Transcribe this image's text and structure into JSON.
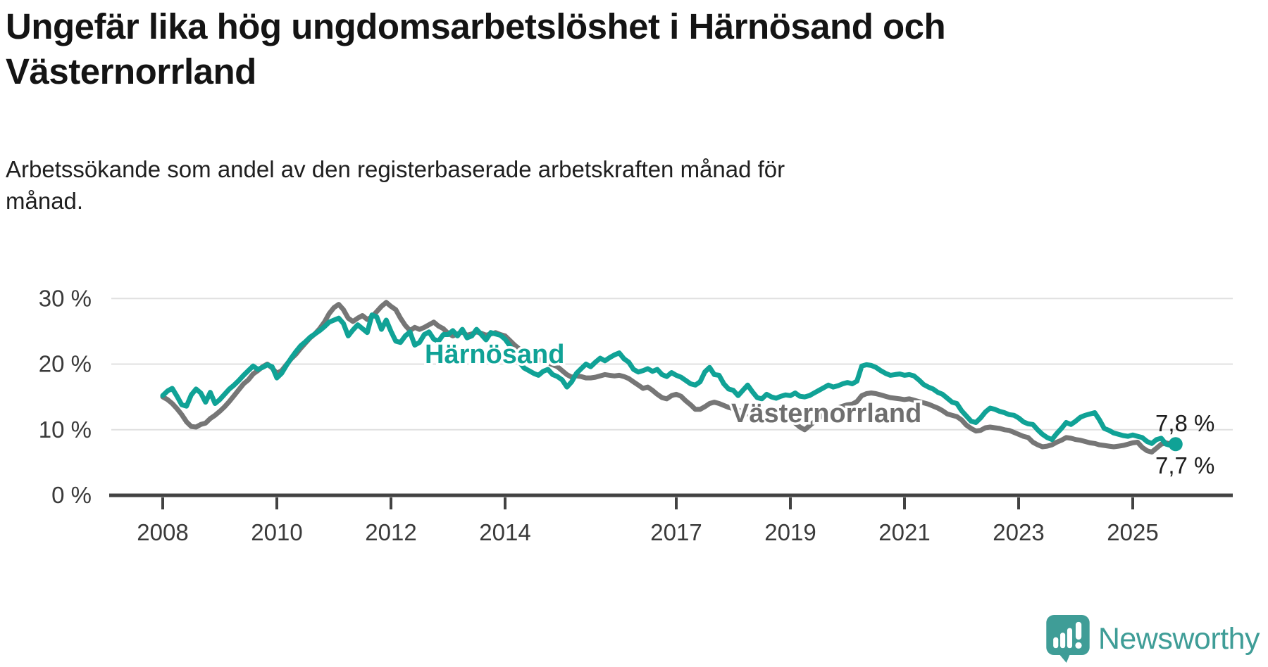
{
  "title": {
    "line1": "Ungefär lika hög ungdomsarbetslöshet i Härnösand och",
    "line2": "Västernorrland"
  },
  "subtitle": {
    "line1": "Arbetssökande som andel av den registerbaserade arbetskraften månad för",
    "line2": "månad."
  },
  "branding": {
    "logo_text": "Newsworthy",
    "logo_color": "#3f9d97",
    "logo_icon": "speech-bubble-bar-chart-exclamation"
  },
  "colors": {
    "harnosand_teal": "#10a296",
    "vasternorrland_grey": "#767676",
    "grid": "#e0e0e0",
    "axis": "#424242",
    "text": "#1f1f1f"
  },
  "chart_data": {
    "type": "line",
    "unit": "%",
    "frequency": "monthly",
    "x_start": "2008-01",
    "x_end": "2025-10",
    "ylim": [
      0,
      32
    ],
    "grid": "horizontal",
    "legend_position": "inline-labels",
    "y_ticks": [
      {
        "value": 30,
        "label": "30 %"
      },
      {
        "value": 20,
        "label": "20 %"
      },
      {
        "value": 10,
        "label": "10 %"
      },
      {
        "value": 0,
        "label": "0 %"
      }
    ],
    "x_ticks": [
      {
        "year": 2008,
        "label": "2008"
      },
      {
        "year": 2010,
        "label": "2010"
      },
      {
        "year": 2012,
        "label": "2012"
      },
      {
        "year": 2014,
        "label": "2014"
      },
      {
        "year": 2017,
        "label": "2017"
      },
      {
        "year": 2019,
        "label": "2019"
      },
      {
        "year": 2021,
        "label": "2021"
      },
      {
        "year": 2023,
        "label": "2023"
      },
      {
        "year": 2025,
        "label": "2025"
      }
    ],
    "series": [
      {
        "name": "Västernorrland",
        "color": "#767676",
        "label_color": "#6f6f6f",
        "end_label": "7,7 %",
        "end_value": 7.7,
        "end_marker": false,
        "values": [
          15.0,
          14.6,
          14.0,
          13.2,
          12.3,
          11.2,
          10.5,
          10.4,
          10.8,
          11.0,
          11.7,
          12.2,
          12.8,
          13.5,
          14.3,
          15.2,
          16.1,
          17.0,
          17.6,
          18.5,
          19.0,
          19.6,
          20.0,
          19.4,
          18.6,
          19.0,
          19.9,
          20.8,
          21.5,
          22.4,
          23.2,
          24.0,
          24.6,
          25.4,
          26.4,
          27.7,
          28.6,
          29.1,
          28.3,
          27.0,
          26.5,
          27.0,
          27.4,
          26.8,
          27.2,
          28.0,
          28.8,
          29.4,
          28.8,
          28.3,
          27.0,
          25.9,
          25.1,
          25.6,
          25.3,
          25.6,
          26.0,
          26.4,
          25.8,
          25.4,
          24.7,
          24.3,
          24.6,
          24.9,
          24.4,
          24.6,
          24.9,
          24.7,
          24.4,
          24.6,
          24.8,
          24.5,
          24.3,
          23.6,
          22.9,
          22.3,
          21.8,
          21.4,
          21.0,
          20.7,
          20.5,
          20.2,
          19.9,
          19.6,
          19.0,
          18.4,
          18.0,
          18.2,
          18.1,
          17.9,
          17.9,
          18.0,
          18.2,
          18.4,
          18.3,
          18.2,
          18.3,
          18.1,
          17.8,
          17.3,
          16.8,
          16.3,
          16.5,
          16.0,
          15.4,
          14.9,
          14.7,
          15.2,
          15.4,
          15.1,
          14.4,
          13.8,
          13.1,
          13.1,
          13.5,
          14.0,
          14.2,
          14.0,
          13.7,
          13.4,
          13.2,
          13.0,
          12.7,
          12.4,
          12.2,
          12.5,
          12.8,
          12.6,
          12.3,
          12.1,
          11.9,
          11.8,
          11.5,
          11.0,
          10.4,
          10.0,
          10.6,
          11.2,
          11.8,
          12.3,
          12.7,
          13.0,
          13.3,
          13.6,
          13.8,
          13.9,
          14.3,
          15.2,
          15.5,
          15.6,
          15.5,
          15.3,
          15.1,
          14.9,
          14.8,
          14.7,
          14.6,
          14.7,
          14.5,
          14.3,
          14.1,
          13.9,
          13.6,
          13.3,
          12.9,
          12.4,
          12.2,
          12.0,
          11.5,
          10.7,
          10.2,
          9.8,
          9.9,
          10.3,
          10.4,
          10.3,
          10.2,
          10.0,
          9.9,
          9.6,
          9.3,
          9.0,
          8.8,
          8.1,
          7.7,
          7.4,
          7.5,
          7.7,
          8.1,
          8.4,
          8.8,
          8.7,
          8.5,
          8.4,
          8.2,
          8.0,
          7.9,
          7.7,
          7.6,
          7.5,
          7.4,
          7.5,
          7.6,
          7.8,
          8.0,
          8.1,
          7.3,
          6.8,
          6.6,
          7.2,
          7.8,
          8.0,
          7.8,
          7.7
        ]
      },
      {
        "name": "Härnösand",
        "color": "#10a296",
        "label_color": "#10a296",
        "end_label": "7,8 %",
        "end_value": 7.8,
        "end_marker": true,
        "values": [
          15.2,
          15.9,
          16.3,
          15.1,
          13.8,
          13.6,
          15.3,
          16.2,
          15.6,
          14.2,
          15.7,
          14.0,
          14.6,
          15.4,
          16.2,
          16.8,
          17.5,
          18.3,
          19.0,
          19.7,
          19.2,
          19.5,
          19.9,
          19.6,
          17.9,
          18.6,
          19.8,
          20.9,
          21.9,
          22.8,
          23.4,
          24.1,
          24.6,
          25.1,
          25.7,
          26.4,
          26.7,
          27.0,
          26.2,
          24.3,
          25.2,
          26.0,
          25.4,
          24.8,
          27.5,
          27.2,
          25.3,
          26.7,
          25.0,
          23.5,
          23.3,
          24.3,
          24.9,
          22.9,
          23.3,
          24.5,
          24.9,
          23.8,
          23.5,
          24.5,
          24.5,
          25.1,
          24.3,
          25.3,
          24.0,
          24.3,
          25.3,
          24.5,
          23.7,
          24.8,
          24.6,
          24.4,
          23.8,
          22.8,
          21.5,
          20.3,
          19.4,
          19.0,
          18.6,
          18.3,
          18.9,
          19.2,
          18.4,
          18.1,
          17.6,
          16.5,
          17.3,
          18.6,
          19.3,
          20.0,
          19.6,
          20.3,
          20.9,
          20.5,
          21.0,
          21.4,
          21.7,
          20.8,
          20.3,
          19.2,
          18.8,
          19.0,
          19.3,
          18.9,
          19.2,
          18.4,
          18.1,
          18.7,
          18.3,
          18.0,
          17.5,
          17.0,
          16.8,
          17.3,
          18.8,
          19.5,
          18.4,
          18.3,
          17.0,
          16.2,
          16.0,
          15.2,
          16.0,
          16.8,
          15.8,
          14.9,
          14.7,
          15.4,
          15.0,
          14.8,
          15.1,
          15.3,
          15.2,
          15.6,
          15.1,
          15.0,
          15.2,
          15.6,
          16.0,
          16.4,
          16.8,
          16.5,
          16.7,
          17.0,
          17.2,
          17.0,
          17.4,
          19.7,
          19.9,
          19.8,
          19.5,
          19.0,
          18.6,
          18.3,
          18.4,
          18.5,
          18.3,
          18.4,
          18.2,
          17.6,
          16.9,
          16.5,
          16.2,
          15.7,
          15.4,
          14.8,
          14.2,
          14.0,
          12.9,
          12.1,
          11.3,
          11.1,
          11.8,
          12.7,
          13.3,
          13.1,
          12.8,
          12.6,
          12.3,
          12.2,
          11.8,
          11.2,
          10.9,
          10.8,
          10.0,
          9.3,
          8.8,
          8.5,
          9.4,
          10.2,
          11.1,
          10.8,
          11.3,
          11.9,
          12.2,
          12.4,
          12.6,
          11.5,
          10.2,
          9.9,
          9.5,
          9.3,
          9.1,
          9.0,
          9.2,
          9.0,
          8.8,
          8.2,
          7.9,
          8.5,
          8.7,
          7.8,
          7.6,
          7.8
        ]
      }
    ]
  }
}
